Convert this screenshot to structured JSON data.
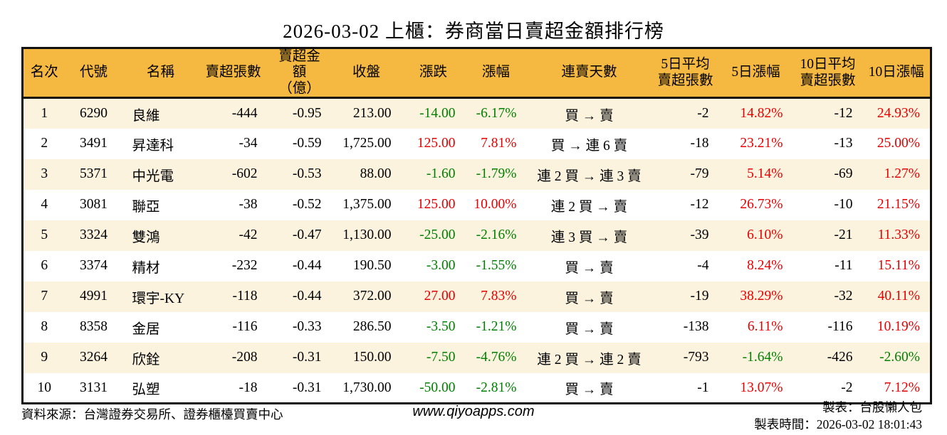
{
  "chart_data": {
    "type": "table",
    "title": "2026-03-02 上櫃：券商當日賣超金額排行榜",
    "columns": [
      "名次",
      "代號",
      "名稱",
      "賣超張數",
      "賣超金額\n（億）",
      "收盤",
      "漲跌",
      "漲幅",
      "連賣天數",
      "5日平均\n賣超張數",
      "5日漲幅",
      "10日平均\n賣超張數",
      "10日漲幅"
    ],
    "rows": [
      [
        "1",
        "6290",
        "良維",
        "-444",
        "-0.95",
        "213.00",
        "-14.00",
        "-6.17%",
        "買 → 賣",
        "-2",
        "14.82%",
        "-12",
        "24.93%"
      ],
      [
        "2",
        "3491",
        "昇達科",
        "-34",
        "-0.59",
        "1,725.00",
        "125.00",
        "7.81%",
        "買 → 連 6 賣",
        "-18",
        "23.21%",
        "-13",
        "25.00%"
      ],
      [
        "3",
        "5371",
        "中光電",
        "-602",
        "-0.53",
        "88.00",
        "-1.60",
        "-1.79%",
        "連 2 買 → 連 3 賣",
        "-79",
        "5.14%",
        "-69",
        "1.27%"
      ],
      [
        "4",
        "3081",
        "聯亞",
        "-38",
        "-0.52",
        "1,375.00",
        "125.00",
        "10.00%",
        "連 2 買 → 賣",
        "-12",
        "26.73%",
        "-10",
        "21.15%"
      ],
      [
        "5",
        "3324",
        "雙鴻",
        "-42",
        "-0.47",
        "1,130.00",
        "-25.00",
        "-2.16%",
        "連 3 買 → 賣",
        "-39",
        "6.10%",
        "-21",
        "11.33%"
      ],
      [
        "6",
        "3374",
        "精材",
        "-232",
        "-0.44",
        "190.50",
        "-3.00",
        "-1.55%",
        "買 → 賣",
        "-4",
        "8.24%",
        "-11",
        "15.11%"
      ],
      [
        "7",
        "4991",
        "環宇-KY",
        "-118",
        "-0.44",
        "372.00",
        "27.00",
        "7.83%",
        "買 → 賣",
        "-19",
        "38.29%",
        "-32",
        "40.11%"
      ],
      [
        "8",
        "8358",
        "金居",
        "-116",
        "-0.33",
        "286.50",
        "-3.50",
        "-1.21%",
        "買 → 賣",
        "-138",
        "6.11%",
        "-116",
        "10.19%"
      ],
      [
        "9",
        "3264",
        "欣銓",
        "-208",
        "-0.31",
        "150.00",
        "-7.50",
        "-4.76%",
        "連 2 買 → 連 2 賣",
        "-793",
        "-1.64%",
        "-426",
        "-2.60%"
      ],
      [
        "10",
        "3131",
        "弘塑",
        "-18",
        "-0.31",
        "1,730.00",
        "-50.00",
        "-2.81%",
        "買 → 賣",
        "-1",
        "13.07%",
        "-2",
        "7.12%"
      ]
    ],
    "layout_hints": {
      "colored_columns_by_sign": [
        6,
        7,
        10,
        12
      ],
      "positive_color_meaning": "up (red, Taiwan convention)",
      "negative_color_meaning": "down (green, Taiwan convention)",
      "striped_rows": true
    }
  },
  "footer": {
    "source": "資料來源：台灣證券交易所、證券櫃檯買賣中心",
    "website": "www.qiyoapps.com",
    "made_by": "製表：台股懶人包",
    "made_time": "製表時間：2026-03-02 18:01:43"
  },
  "colors": {
    "header_bg": "#f5b942",
    "row_alt_bg": "#fcf3df",
    "up_red": "#e60000",
    "down_green": "#008000",
    "border": "#111111"
  }
}
